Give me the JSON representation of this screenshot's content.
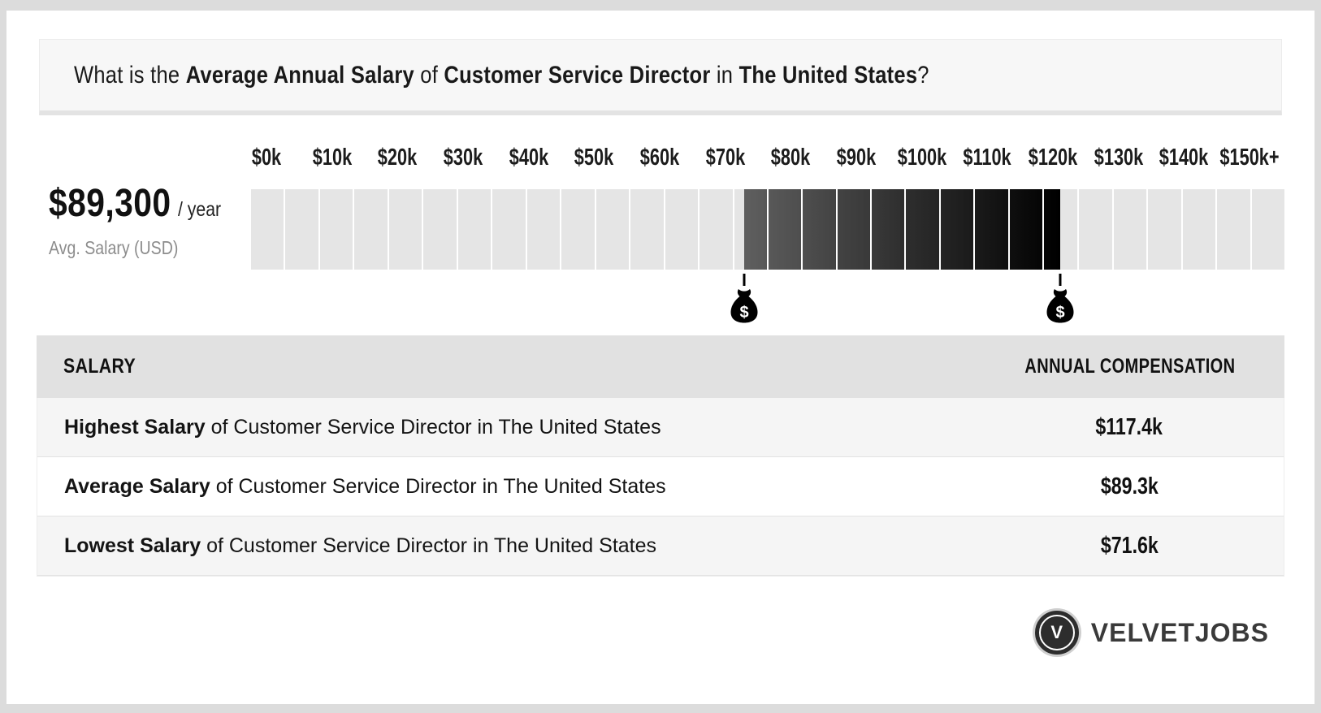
{
  "page": {
    "question_parts": [
      {
        "text": "What is the ",
        "bold": false
      },
      {
        "text": "Average Annual Salary",
        "bold": true
      },
      {
        "text": " of ",
        "bold": false
      },
      {
        "text": "Customer Service Director",
        "bold": true
      },
      {
        "text": " in ",
        "bold": false
      },
      {
        "text": "The United States",
        "bold": true
      },
      {
        "text": "?",
        "bold": false
      }
    ]
  },
  "summary": {
    "amount": "$89,300",
    "per": "/ year",
    "label": "Avg. Salary (USD)"
  },
  "chart_data": {
    "type": "bar",
    "subtype": "salary-range-strip",
    "title": "Average Annual Salary of Customer Service Director in The United States",
    "axis_ticks": [
      "$0k",
      "$10k",
      "$20k",
      "$30k",
      "$40k",
      "$50k",
      "$60k",
      "$70k",
      "$80k",
      "$90k",
      "$100k",
      "$110k",
      "$120k",
      "$130k",
      "$140k",
      "$150k+"
    ],
    "axis_min_k": 0,
    "axis_max_k": 150,
    "axis_unit": "USD thousands",
    "segment_size_k": 5,
    "segment_count": 30,
    "lowest_k": 71.6,
    "average_k": 89.3,
    "highest_k": 117.4,
    "average_display": "$89,300 / year",
    "track_color": "#e5e5e5",
    "range_color_start": "#5f5f5f",
    "range_color_end": "#000000",
    "markers": [
      {
        "name": "lowest-salary-marker",
        "value_k": 71.6
      },
      {
        "name": "highest-salary-marker",
        "value_k": 117.4
      }
    ],
    "legend": "off",
    "grid": "off"
  },
  "table": {
    "col1_header": "SALARY",
    "col2_header": "ANNUAL COMPENSATION",
    "rows": [
      {
        "bold": "Highest Salary",
        "rest": " of Customer Service Director in The United States",
        "value": "$117.4k"
      },
      {
        "bold": "Average Salary",
        "rest": " of Customer Service Director in The United States",
        "value": "$89.3k"
      },
      {
        "bold": "Lowest Salary",
        "rest": " of Customer Service Director in The United States",
        "value": "$71.6k"
      }
    ]
  },
  "brand": {
    "monogram": "V",
    "name": "VELVETJOBS"
  }
}
